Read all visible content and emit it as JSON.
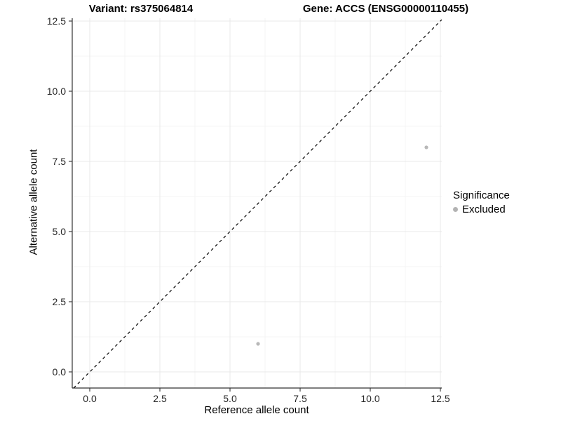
{
  "figure": {
    "title_left": "Variant: rs375064814",
    "title_right": "Gene: ACCS (ENSG00000110455)"
  },
  "legend": {
    "title": "Significance",
    "items": [
      {
        "label": "Excluded",
        "color": "#b3b3b3"
      }
    ]
  },
  "chart_data": {
    "type": "scatter",
    "title": "Variant: rs375064814 | Gene: ACCS (ENSG00000110455)",
    "xlabel": "Reference allele count",
    "ylabel": "Alternative allele count",
    "xlim": [
      -0.625,
      12.55
    ],
    "ylim": [
      -0.575,
      12.6
    ],
    "x_ticks": {
      "values": [
        0,
        2.5,
        5,
        7.5,
        10,
        12.5
      ],
      "labels": [
        "0.0",
        "2.5",
        "5.0",
        "7.5",
        "10.0",
        "12.5"
      ]
    },
    "y_ticks": {
      "values": [
        0,
        2.5,
        5,
        7.5,
        10,
        12.5
      ],
      "labels": [
        "0.0",
        "2.5",
        "5.0",
        "7.5",
        "10.0",
        "12.5"
      ]
    },
    "minor_ticks": [
      1.25,
      3.75,
      6.25,
      8.75,
      11.25
    ],
    "grid": "major+minor",
    "legend_position": "right",
    "identity_line": {
      "show": true,
      "linetype": "dashed",
      "color": "#000000",
      "equation": "y = x"
    },
    "series": [
      {
        "name": "Excluded",
        "color": "#b8b8b8",
        "points": [
          {
            "x": 12,
            "y": 8
          },
          {
            "x": 6,
            "y": 1
          }
        ]
      }
    ]
  },
  "style": {
    "axis_line_color": "#333333",
    "tick_label_color": "#262626",
    "grid_major_color": "#e9e9e9",
    "grid_minor_color": "#f4f4f4",
    "point_radius": 2.6,
    "background": "#ffffff"
  }
}
